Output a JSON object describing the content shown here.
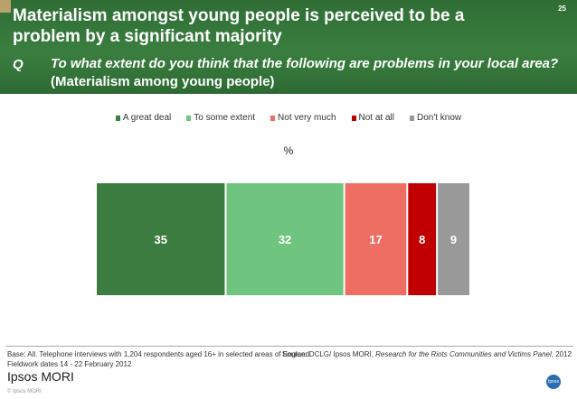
{
  "slide": {
    "title": "Materialism amongst young people is perceived to be a problem by a significant majority",
    "page_number": "25",
    "q_label": "Q",
    "question_italic": "To what extent do you think that the following are problems in your local area?",
    "question_sub": "(Materialism among young people)"
  },
  "chart_data": {
    "type": "bar",
    "orientation": "horizontal-stacked",
    "unit_label": "%",
    "series": [
      {
        "name": "A great deal",
        "value": 35,
        "color": "#3d7c40"
      },
      {
        "name": "To some extent",
        "value": 32,
        "color": "#6fc47f"
      },
      {
        "name": "Not very much",
        "value": 17,
        "color": "#ef6e64"
      },
      {
        "name": "Not at all",
        "value": 8,
        "color": "#c00000"
      },
      {
        "name": "Don't know",
        "value": 9,
        "color": "#999999"
      }
    ],
    "legend_position": "top"
  },
  "footer": {
    "base_line1": "Base: All.  Telephone interviews with 1,204 respondents aged 16+ in selected areas of England.",
    "base_line2": "Fieldwork dates 14 - 22 February 2012",
    "source_prefix": "Source: DCLG/ Ipsos MORI, ",
    "source_italic": "Research for the Riots Communities and Victims Panel",
    "source_suffix": ", 2012",
    "logo_text": "Ipsos MORI",
    "copyright": "© Ipsos MORI",
    "badge": "Ipsos"
  }
}
